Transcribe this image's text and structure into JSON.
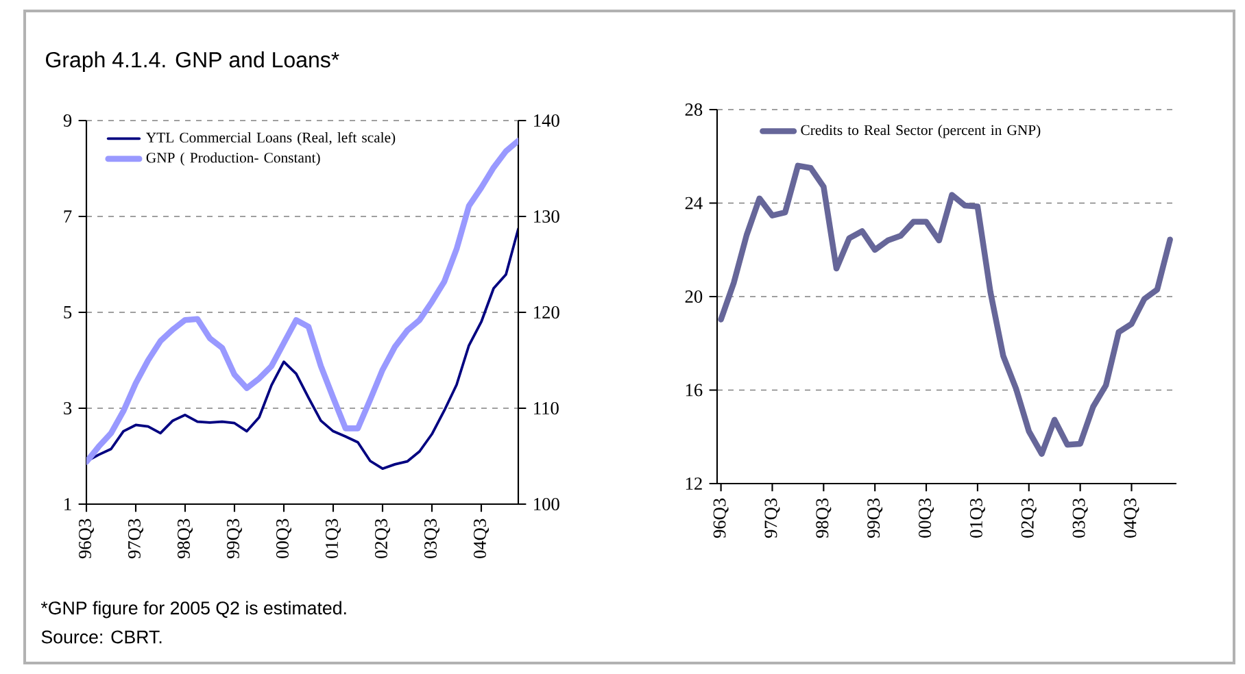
{
  "chart_data": [
    {
      "type": "line",
      "title": "Graph 4.1.4. GNP and Loans*",
      "categories": [
        "96Q3",
        null,
        null,
        null,
        "97Q3",
        null,
        null,
        null,
        "98Q3",
        null,
        null,
        null,
        "99Q3",
        null,
        null,
        null,
        "00Q3",
        null,
        null,
        null,
        "01Q3",
        null,
        null,
        null,
        "02Q3",
        null,
        null,
        null,
        "03Q3",
        null,
        null,
        null,
        "04Q3",
        null,
        null,
        null
      ],
      "series": [
        {
          "name": "YTL Commercial Loans (Real, left scale)",
          "color": "#000080",
          "values": [
            1.89,
            2.03,
            2.15,
            2.52,
            2.65,
            2.62,
            2.48,
            2.74,
            2.86,
            2.72,
            2.7,
            2.72,
            2.69,
            2.52,
            2.81,
            3.48,
            3.97,
            3.72,
            3.22,
            2.74,
            2.52,
            2.41,
            2.29,
            1.9,
            1.74,
            1.83,
            1.89,
            2.1,
            2.46,
            2.95,
            3.49,
            4.31,
            4.8,
            5.5,
            5.79,
            6.74
          ]
        },
        {
          "name": "GNP ( Production- Constant)",
          "color": "#9999ff",
          "axis": "y2",
          "values": [
            104.4,
            106.0,
            107.4,
            109.7,
            112.6,
            115.0,
            117.0,
            118.2,
            119.2,
            119.3,
            117.3,
            116.3,
            113.5,
            112.1,
            113.1,
            114.4,
            116.8,
            119.2,
            118.5,
            114.4,
            111.1,
            107.9,
            107.9,
            110.9,
            114.0,
            116.4,
            118.1,
            119.2,
            121.1,
            123.2,
            126.6,
            131.1,
            133.0,
            135.1,
            136.8,
            137.9
          ]
        }
      ],
      "ylim": [
        1,
        9
      ],
      "yticks": [
        1,
        3,
        5,
        7,
        9
      ],
      "y2lim": [
        100,
        140
      ],
      "y2ticks": [
        100,
        110,
        120,
        130,
        140
      ],
      "grid": "y",
      "legend": "top left",
      "annotations": [
        "*GNP figure for 2005 Q2 is estimated.",
        "Source: CBRT."
      ]
    },
    {
      "type": "line",
      "categories": [
        "96Q3",
        null,
        null,
        null,
        "97Q3",
        null,
        null,
        null,
        "98Q3",
        null,
        null,
        null,
        "99Q3",
        null,
        null,
        null,
        "00Q3",
        null,
        null,
        null,
        "01Q3",
        null,
        null,
        null,
        "02Q3",
        null,
        null,
        null,
        "03Q3",
        null,
        null,
        null,
        "04Q3",
        null,
        null,
        null
      ],
      "series": [
        {
          "name": "Credits to Real Sector (percent in GNP)",
          "color": "#666699",
          "values": [
            19.02,
            20.59,
            22.63,
            24.2,
            23.47,
            23.6,
            25.6,
            25.5,
            24.7,
            21.2,
            22.5,
            22.8,
            22.0,
            22.4,
            22.6,
            23.2,
            23.2,
            22.4,
            24.35,
            23.9,
            23.85,
            20.2,
            17.46,
            16.06,
            14.24,
            13.27,
            14.73,
            13.66,
            13.7,
            15.28,
            16.2,
            18.48,
            18.83,
            19.9,
            20.3,
            22.44
          ]
        }
      ],
      "ylim": [
        12,
        28
      ],
      "yticks": [
        12,
        16,
        20,
        24,
        28
      ],
      "grid": "y",
      "legend": "top"
    }
  ]
}
